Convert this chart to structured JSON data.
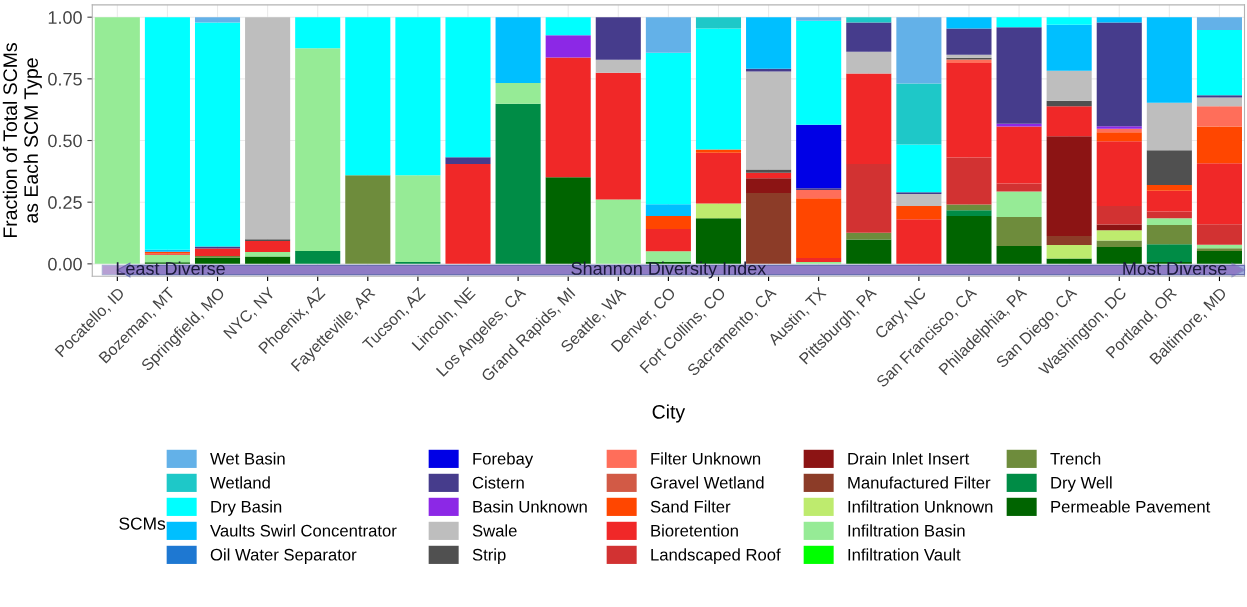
{
  "chart_data": {
    "type": "bar",
    "stacked": true,
    "xlabel": "City",
    "ylabel": "Fraction of Total SCMs\nas Each SCM Type",
    "legend_title": "SCMs",
    "annotations": [
      "Least Diverse",
      "Shannon Diversity Index",
      "Most Diverse"
    ],
    "categories": [
      "Pocatello, ID",
      "Bozeman, MT",
      "Springfield, MO",
      "NYC, NY",
      "Phoenix, AZ",
      "Fayetteville, AR",
      "Tucson, AZ",
      "Lincoln, NE",
      "Los Angeles, CA",
      "Grand Rapids, MI",
      "Seattle, WA",
      "Denver, CO",
      "Fort Collins, CO",
      "Sacramento, CA",
      "Austin, TX",
      "Pittsburgh, PA",
      "Cary, NC",
      "San Francisco, CA",
      "Philadelphia, PA",
      "San Diego, CA",
      "Washington, DC",
      "Portland, OR",
      "Baltimore, MD"
    ],
    "ylim": [
      -0.05,
      1.05
    ],
    "yticks": [
      {
        "value": 0,
        "label": "0.00"
      },
      {
        "value": 0.25,
        "label": "0.25"
      },
      {
        "value": 0.5,
        "label": "0.50"
      },
      {
        "value": 0.75,
        "label": "0.75"
      },
      {
        "value": 1,
        "label": "1.00"
      }
    ],
    "grid": true,
    "legend": "bottom",
    "series": [
      {
        "name": "Permeable Pavement",
        "color": "#006400",
        "values": [
          0,
          0.007,
          0.025,
          0.03,
          0,
          0,
          0,
          0,
          0,
          0.351,
          0,
          0.008,
          0.185,
          0,
          0,
          0.099,
          0,
          0.194,
          0.072,
          0.022,
          0.068,
          0.008,
          0.052
        ]
      },
      {
        "name": "Dry Well",
        "color": "#008c46",
        "values": [
          0,
          0,
          0,
          0,
          0.052,
          0,
          0.008,
          0,
          0.649,
          0,
          0,
          0,
          0,
          0,
          0,
          0,
          0,
          0.023,
          0,
          0,
          0,
          0.071,
          0
        ]
      },
      {
        "name": "Trench",
        "color": "#6e8c3c",
        "values": [
          0,
          0,
          0.007,
          0,
          0,
          0.359,
          0,
          0,
          0,
          0,
          0,
          0,
          0,
          0,
          0,
          0.027,
          0,
          0.024,
          0.118,
          0,
          0.027,
          0.079,
          0.011
        ]
      },
      {
        "name": "Infiltration Vault",
        "color": "#00ff00",
        "values": [
          0,
          0,
          0,
          0,
          0,
          0,
          0,
          0,
          0,
          0,
          0,
          0,
          0,
          0,
          0,
          0,
          0,
          0,
          0,
          0,
          0,
          0,
          0
        ]
      },
      {
        "name": "Infiltration Basin",
        "color": "#96eb96",
        "values": [
          1,
          0.03,
          0,
          0.018,
          0.822,
          0,
          0.351,
          0,
          0.084,
          0,
          0.261,
          0.043,
          0,
          0,
          0.008,
          0,
          0,
          0,
          0.103,
          0,
          0,
          0.027,
          0.014
        ]
      },
      {
        "name": "Infiltration Unknown",
        "color": "#beeb6e",
        "values": [
          0,
          0,
          0,
          0,
          0,
          0,
          0,
          0,
          0,
          0,
          0,
          0,
          0.06,
          0,
          0,
          0,
          0,
          0,
          0,
          0.054,
          0.041,
          0,
          0
        ]
      },
      {
        "name": "Manufactured Filter",
        "color": "#8c3c28",
        "values": [
          0,
          0,
          0,
          0,
          0,
          0,
          0,
          0,
          0,
          0,
          0,
          0,
          0,
          0.287,
          0,
          0,
          0,
          0,
          0,
          0.037,
          0,
          0,
          0
        ]
      },
      {
        "name": "Drain Inlet Insert",
        "color": "#8c1414",
        "values": [
          0,
          0,
          0,
          0,
          0,
          0,
          0,
          0,
          0,
          0,
          0,
          0,
          0,
          0.06,
          0,
          0,
          0,
          0,
          0,
          0.404,
          0.024,
          0,
          0
        ]
      },
      {
        "name": "Landscaped Roof",
        "color": "#d23232",
        "values": [
          0,
          0,
          0,
          0,
          0,
          0,
          0,
          0,
          0,
          0,
          0,
          0,
          0,
          0,
          0,
          0.279,
          0,
          0.19,
          0.033,
          0,
          0.075,
          0.027,
          0.084
        ]
      },
      {
        "name": "Bioretention",
        "color": "#f02828",
        "values": [
          0,
          0.005,
          0.03,
          0.045,
          0,
          0,
          0,
          0.405,
          0,
          0.486,
          0.514,
          0.09,
          0.205,
          0.022,
          0.016,
          0.367,
          0.181,
          0.383,
          0.231,
          0.122,
          0.262,
          0.084,
          0.247
        ]
      },
      {
        "name": "Sand Filter",
        "color": "#ff4600",
        "values": [
          0,
          0.007,
          0,
          0,
          0,
          0,
          0,
          0,
          0,
          0,
          0,
          0.053,
          0.014,
          0,
          0.242,
          0,
          0.054,
          0,
          0,
          0,
          0.037,
          0.024,
          0.149
        ]
      },
      {
        "name": "Gravel Wetland",
        "color": "#d25a46",
        "values": [
          0,
          0,
          0,
          0,
          0,
          0,
          0,
          0,
          0,
          0,
          0,
          0,
          0,
          0,
          0,
          0,
          0,
          0,
          0,
          0,
          0,
          0,
          0
        ]
      },
      {
        "name": "Filter Unknown",
        "color": "#ff6e5a",
        "values": [
          0,
          0,
          0,
          0,
          0,
          0,
          0,
          0,
          0,
          0,
          0,
          0,
          0,
          0,
          0.033,
          0,
          0,
          0.014,
          0,
          0,
          0.014,
          0,
          0.082
        ]
      },
      {
        "name": "Strip",
        "color": "#505050",
        "values": [
          0,
          0,
          0,
          0.007,
          0,
          0,
          0,
          0,
          0,
          0,
          0,
          0,
          0,
          0.014,
          0,
          0,
          0,
          0.008,
          0,
          0.022,
          0,
          0.141,
          0
        ]
      },
      {
        "name": "Swale",
        "color": "#bebebe",
        "values": [
          0,
          0,
          0,
          0.9,
          0,
          0,
          0,
          0,
          0,
          0,
          0.052,
          0,
          0,
          0.397,
          0,
          0.088,
          0.048,
          0.012,
          0,
          0.122,
          0,
          0.192,
          0.035
        ]
      },
      {
        "name": "Basin Unknown",
        "color": "#8c28e6",
        "values": [
          0,
          0,
          0,
          0,
          0,
          0,
          0,
          0,
          0,
          0.09,
          0,
          0,
          0,
          0,
          0,
          0,
          0,
          0,
          0.011,
          0,
          0.01,
          0,
          0
        ]
      },
      {
        "name": "Cistern",
        "color": "#463c8c",
        "values": [
          0,
          0,
          0.008,
          0,
          0,
          0,
          0,
          0.027,
          0,
          0,
          0.173,
          0,
          0,
          0.011,
          0.008,
          0.118,
          0.007,
          0.106,
          0.391,
          0,
          0.42,
          0,
          0.01
        ]
      },
      {
        "name": "Forebay",
        "color": "#0000e6",
        "values": [
          0,
          0,
          0,
          0,
          0,
          0,
          0,
          0,
          0,
          0,
          0,
          0,
          0,
          0,
          0.257,
          0,
          0,
          0,
          0,
          0,
          0,
          0,
          0
        ]
      },
      {
        "name": "Oil Water Separator",
        "color": "#1e78d2",
        "values": [
          0,
          0,
          0,
          0,
          0,
          0,
          0,
          0,
          0,
          0,
          0,
          0,
          0,
          0,
          0,
          0,
          0,
          0,
          0,
          0,
          0,
          0,
          0
        ]
      },
      {
        "name": "Vaults Swirl Concentrator",
        "color": "#00bfff",
        "values": [
          0,
          0.008,
          0,
          0,
          0,
          0,
          0,
          0,
          0.267,
          0,
          0,
          0.048,
          0,
          0.209,
          0,
          0,
          0,
          0.046,
          0,
          0.186,
          0.022,
          0.347,
          0
        ]
      },
      {
        "name": "Dry Basin",
        "color": "#00ffff",
        "values": [
          0,
          0.943,
          0.908,
          0,
          0.126,
          0.641,
          0.641,
          0.568,
          0,
          0.073,
          0,
          0.614,
          0.49,
          0,
          0.422,
          0,
          0.194,
          0,
          0.041,
          0.031,
          0,
          0,
          0.264
        ]
      },
      {
        "name": "Wetland",
        "color": "#1ec8c8",
        "values": [
          0,
          0,
          0,
          0,
          0,
          0,
          0,
          0,
          0,
          0,
          0,
          0,
          0.046,
          0,
          0,
          0.022,
          0.247,
          0,
          0,
          0,
          0,
          0,
          0
        ]
      },
      {
        "name": "Wet Basin",
        "color": "#63b1e8",
        "values": [
          0,
          0,
          0.022,
          0,
          0,
          0,
          0,
          0,
          0,
          0,
          0,
          0.144,
          0,
          0,
          0.014,
          0,
          0.269,
          0,
          0,
          0,
          0,
          0,
          0.052
        ]
      }
    ]
  }
}
